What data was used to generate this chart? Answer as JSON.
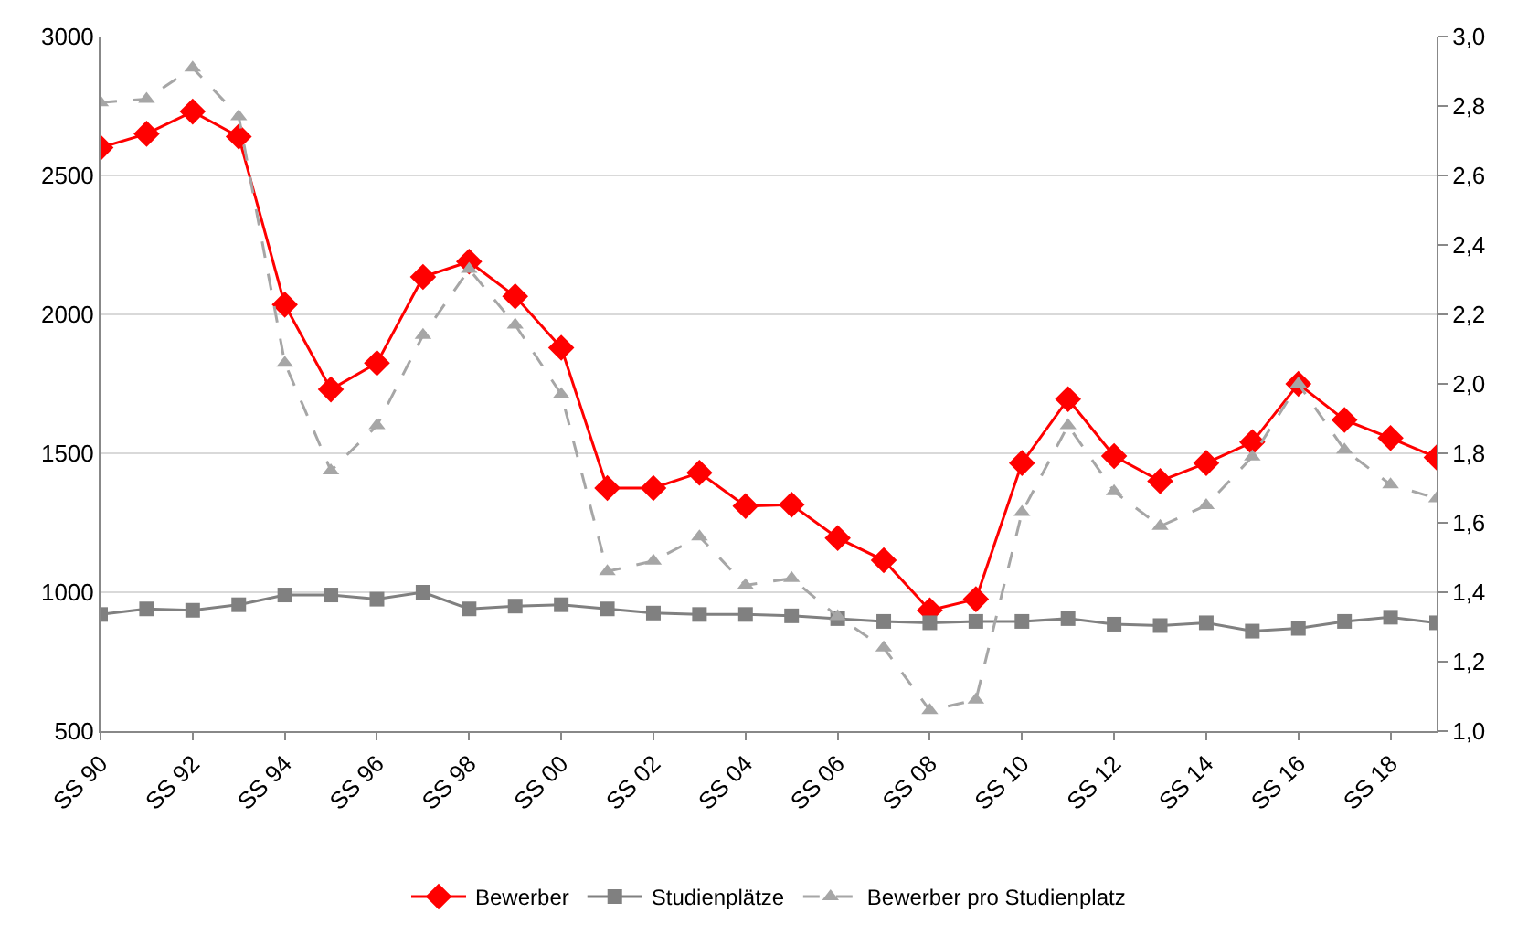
{
  "chart_data": {
    "type": "line",
    "categories": [
      "SS 90",
      null,
      "SS 92",
      null,
      "SS 94",
      null,
      "SS 96",
      null,
      "SS 98",
      null,
      "SS 00",
      null,
      "SS 02",
      null,
      "SS 04",
      null,
      "SS 06",
      null,
      "SS 08",
      null,
      "SS 10",
      null,
      "SS 12",
      null,
      "SS 14",
      null,
      "SS 16",
      null,
      "SS 18",
      null
    ],
    "series": [
      {
        "name": "Bewerber",
        "color": "#ff0000",
        "marker": "diamond",
        "line_style": "solid",
        "values": [
          2600,
          2650,
          2730,
          2640,
          2035,
          1730,
          1825,
          2135,
          2190,
          2065,
          1880,
          1375,
          1375,
          1430,
          1310,
          1315,
          1195,
          1115,
          935,
          975,
          1465,
          1695,
          1490,
          1400,
          1465,
          1540,
          1750,
          1620,
          1555,
          1485
        ]
      },
      {
        "name": "Studienplätze",
        "color": "#808080",
        "marker": "square",
        "line_style": "solid",
        "values": [
          920,
          940,
          935,
          955,
          990,
          990,
          975,
          1000,
          940,
          950,
          955,
          940,
          925,
          920,
          920,
          915,
          905,
          895,
          890,
          895,
          895,
          905,
          885,
          880,
          890,
          860,
          870,
          895,
          910,
          890
        ]
      },
      {
        "name": "Bewerber pro Studienplatz",
        "color": "#a6a6a6",
        "marker": "triangle",
        "line_style": "dashed",
        "axis": "y2",
        "values": [
          2.81,
          2.82,
          2.91,
          2.77,
          2.06,
          1.75,
          1.88,
          2.14,
          2.33,
          2.17,
          1.97,
          1.46,
          1.49,
          1.56,
          1.42,
          1.44,
          1.33,
          1.24,
          1.06,
          1.09,
          1.63,
          1.88,
          1.69,
          1.59,
          1.65,
          1.79,
          2.0,
          1.81,
          1.71,
          1.67
        ]
      }
    ],
    "ylim": [
      500,
      3000
    ],
    "yticks": [
      500,
      1000,
      1500,
      2000,
      2500,
      3000
    ],
    "y2lim": [
      1.0,
      3.0
    ],
    "y2ticks": [
      {
        "value": 1.0,
        "label": "1,0"
      },
      {
        "value": 1.2,
        "label": "1,2"
      },
      {
        "value": 1.4,
        "label": "1,4"
      },
      {
        "value": 1.6,
        "label": "1,6"
      },
      {
        "value": 1.8,
        "label": "1,8"
      },
      {
        "value": 2.0,
        "label": "2,0"
      },
      {
        "value": 2.2,
        "label": "2,2"
      },
      {
        "value": 2.4,
        "label": "2,4"
      },
      {
        "value": 2.6,
        "label": "2,6"
      },
      {
        "value": 2.8,
        "label": "2,8"
      },
      {
        "value": 3.0,
        "label": "3,0"
      }
    ],
    "grid": "y",
    "legend": "bottom"
  }
}
